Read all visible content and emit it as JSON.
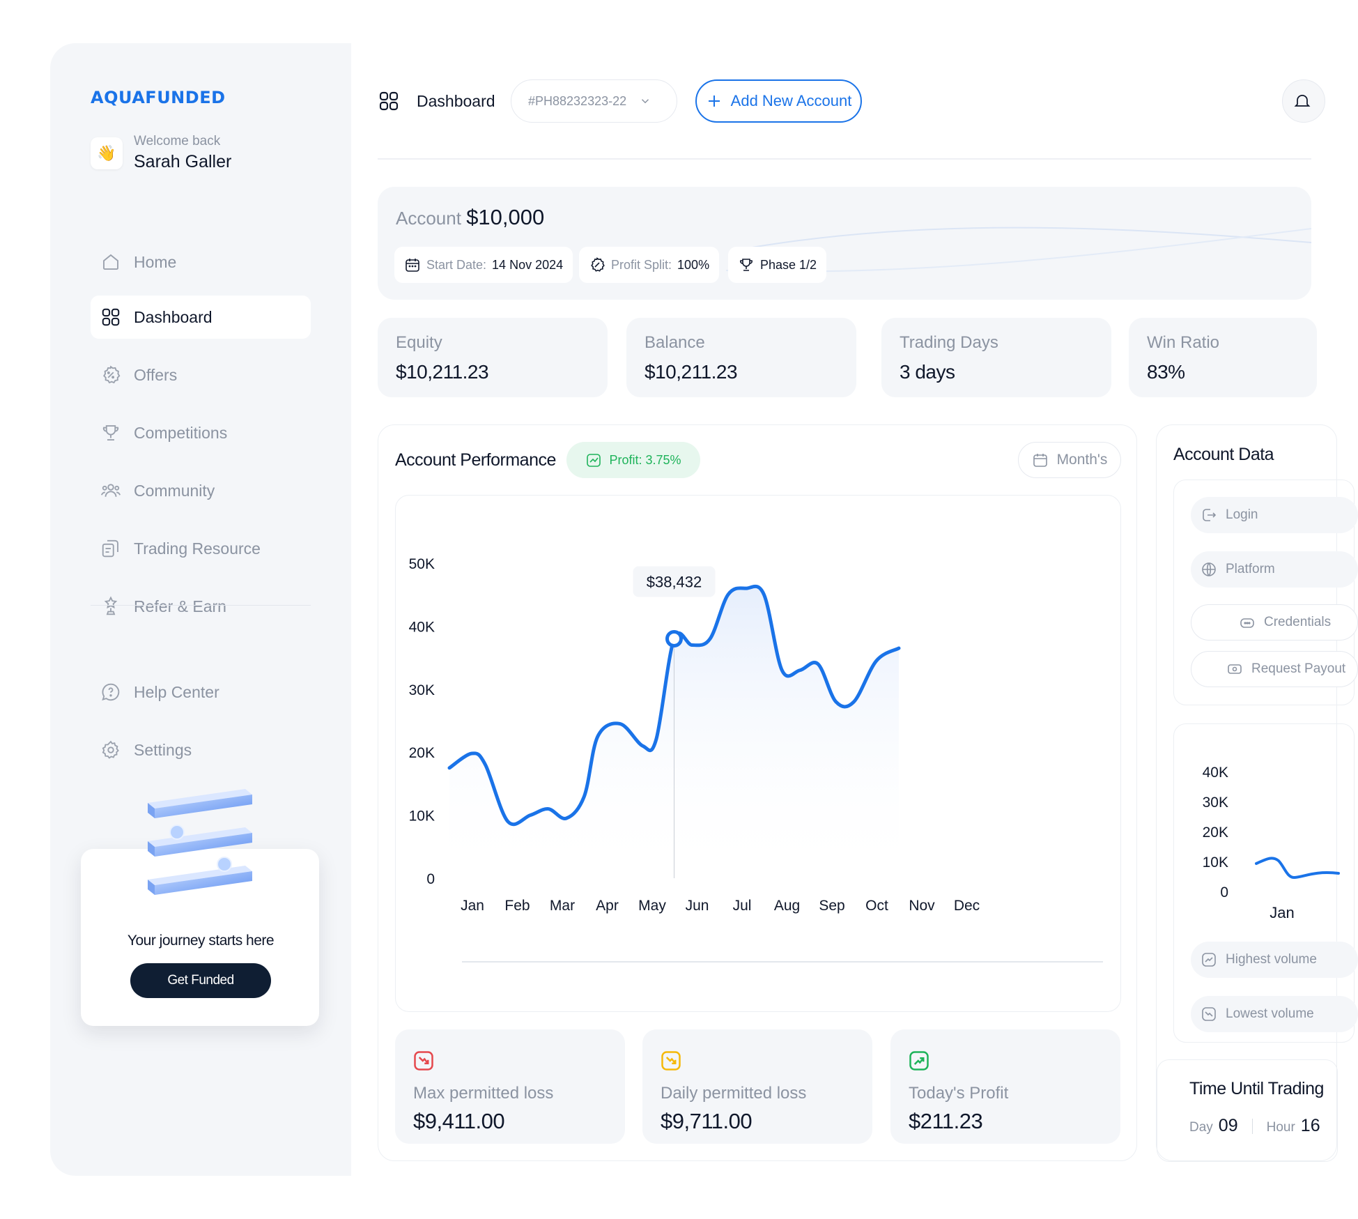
{
  "brand": {
    "name": "AQUAFUNDED",
    "color": "#1a73e8"
  },
  "user": {
    "greeting": "Welcome back",
    "name": "Sarah Galler",
    "avatar_emoji": "👋"
  },
  "sidebar": {
    "items": [
      {
        "label": "Home",
        "icon": "home-icon"
      },
      {
        "label": "Dashboard",
        "icon": "grid-icon",
        "active": true
      },
      {
        "label": "Offers",
        "icon": "percent-badge-icon"
      },
      {
        "label": "Competitions",
        "icon": "trophy-icon"
      },
      {
        "label": "Community",
        "icon": "users-icon"
      },
      {
        "label": "Trading Resource",
        "icon": "documents-icon"
      },
      {
        "label": "Refer & Earn",
        "icon": "award-icon"
      }
    ],
    "bottom_items": [
      {
        "label": "Help Center",
        "icon": "help-icon"
      },
      {
        "label": "Settings",
        "icon": "gear-icon"
      }
    ],
    "promo": {
      "text": "Your journey starts here",
      "button": "Get Funded"
    }
  },
  "topbar": {
    "title": "Dashboard",
    "account_id": "#PH88232323-22",
    "add_button": "Add New Account"
  },
  "account": {
    "label": "Account",
    "amount": "$10,000",
    "start_date_label": "Start Date:",
    "start_date": "14 Nov 2024",
    "profit_split_label": "Profit Split:",
    "profit_split": "100%",
    "phase": "Phase 1/2"
  },
  "stats": [
    {
      "label": "Equity",
      "value": "$10,211.23"
    },
    {
      "label": "Balance",
      "value": "$10,211.23"
    },
    {
      "label": "Trading Days",
      "value": "3 days"
    },
    {
      "label": "Win Ratio",
      "value": "83%"
    }
  ],
  "performance": {
    "title": "Account Performance",
    "profit_badge": "Profit: 3.75%",
    "period": "Month's",
    "tooltip": "$38,432",
    "tooltip_index": 5
  },
  "chart_data": {
    "type": "line",
    "x": [
      "Jan",
      "Feb",
      "Mar",
      "Apr",
      "May",
      "Jun",
      "Jul",
      "Aug",
      "Sep",
      "Oct",
      "Nov",
      "Dec"
    ],
    "y_ticks": [
      "0",
      "10K",
      "20K",
      "30K",
      "40K",
      "50K"
    ],
    "ylim": [
      0,
      50000
    ],
    "series": [
      {
        "points": [
          [
            0.0,
            17500
          ],
          [
            0.5,
            19800
          ],
          [
            0.8,
            18000
          ],
          [
            1.3,
            9000
          ],
          [
            1.8,
            10000
          ],
          [
            2.2,
            11000
          ],
          [
            2.6,
            9500
          ],
          [
            3.0,
            13000
          ],
          [
            3.3,
            22500
          ],
          [
            3.8,
            24500
          ],
          [
            4.3,
            21000
          ],
          [
            4.6,
            22000
          ],
          [
            5.0,
            38000
          ],
          [
            5.4,
            37000
          ],
          [
            5.8,
            38000
          ],
          [
            6.2,
            45000
          ],
          [
            6.6,
            46000
          ],
          [
            7.0,
            45000
          ],
          [
            7.4,
            33000
          ],
          [
            7.8,
            33000
          ],
          [
            8.2,
            34000
          ],
          [
            8.6,
            28000
          ],
          [
            9.0,
            28000
          ],
          [
            9.5,
            34500
          ],
          [
            10.0,
            36500
          ]
        ],
        "color": "#1a73e8"
      }
    ],
    "grid": false
  },
  "limits": [
    {
      "label": "Max permitted loss",
      "value": "$9,411.00",
      "color": "#e5484d",
      "icon": "trend-down-icon"
    },
    {
      "label": "Daily permitted loss",
      "value": "$9,711.00",
      "color": "#f5b90a",
      "icon": "trend-down-icon"
    },
    {
      "label": "Today's Profit",
      "value": "$211.23",
      "color": "#1eb35a",
      "icon": "trend-up-icon"
    }
  ],
  "account_data": {
    "title": "Account Data",
    "buttons": [
      "Login",
      "Platform",
      "Credentials",
      "Request Payout"
    ],
    "mini_chart": {
      "y_ticks": [
        "40K",
        "30K",
        "20K",
        "10K",
        "0"
      ],
      "x_label": "Jan"
    },
    "volume": [
      "Highest volume",
      "Lowest volume"
    ],
    "time_title": "Time Until Trading",
    "day_label": "Day",
    "day_value": "09",
    "hour_label": "Hour",
    "hour_value": "16"
  }
}
